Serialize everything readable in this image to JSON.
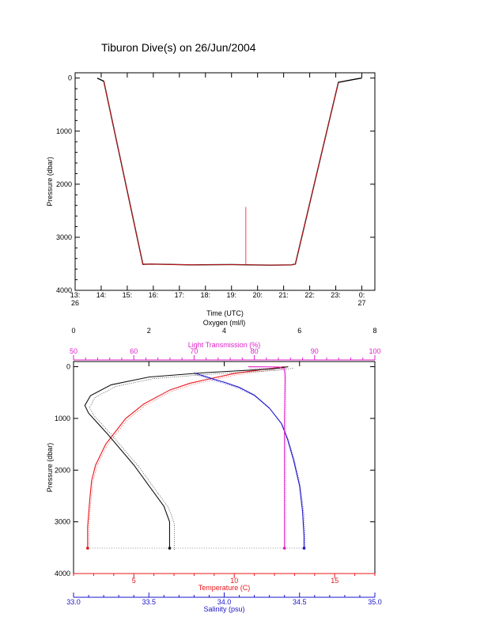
{
  "title": "Tiburon Dive(s) on 26/Jun/2004",
  "colors": {
    "axis": "#000000",
    "temperature": "#e8161c",
    "salinity": "#1a14c8",
    "oxygen": "#111111",
    "transmission": "#e020c8",
    "time_trace_a": "#000000",
    "time_trace_b": "#e8161c"
  },
  "chart_data": [
    {
      "type": "line",
      "name": "time-pressure",
      "xlabel": "Time (UTC)",
      "ylabel": "Pressure (dbar)",
      "xlim": [
        13.0,
        24.5
      ],
      "ylim": [
        4000,
        -100
      ],
      "x_ticks": [
        {
          "value": 13.0,
          "label": "13:",
          "sub": "26"
        },
        {
          "value": 14.0,
          "label": "14:",
          "sub": ""
        },
        {
          "value": 15.0,
          "label": "15:",
          "sub": ""
        },
        {
          "value": 16.0,
          "label": "16:",
          "sub": ""
        },
        {
          "value": 17.0,
          "label": "17:",
          "sub": ""
        },
        {
          "value": 18.0,
          "label": "18:",
          "sub": ""
        },
        {
          "value": 19.0,
          "label": "19:",
          "sub": ""
        },
        {
          "value": 20.0,
          "label": "20:",
          "sub": ""
        },
        {
          "value": 21.0,
          "label": "21:",
          "sub": ""
        },
        {
          "value": 22.0,
          "label": "22:",
          "sub": ""
        },
        {
          "value": 23.0,
          "label": "23:",
          "sub": ""
        },
        {
          "value": 24.0,
          "label": "0:",
          "sub": "27"
        }
      ],
      "y_ticks": [
        0,
        1000,
        2000,
        3000,
        4000
      ],
      "series": [
        {
          "color": "#000000",
          "x": [
            13.85,
            14.1,
            15.6,
            15.9,
            17.5,
            19.0,
            20.5,
            21.3,
            21.45,
            23.1,
            23.75,
            24.0
          ],
          "y": [
            0,
            60,
            3510,
            3505,
            3520,
            3515,
            3525,
            3520,
            3505,
            80,
            20,
            0
          ]
        },
        {
          "color": "#e8161c",
          "x": [
            14.1,
            15.6,
            15.9,
            17.5,
            19.0,
            20.5,
            21.3,
            21.45,
            23.1
          ],
          "y": [
            60,
            3510,
            3505,
            3520,
            3515,
            3525,
            3520,
            3505,
            80
          ]
        }
      ],
      "spike": {
        "color": "#e8161c",
        "x": 19.55,
        "y_top": 2430,
        "y_bottom": 3520
      }
    },
    {
      "type": "line",
      "name": "profiles",
      "ylabel": "Pressure (dbar)",
      "ylim": [
        4000,
        -100
      ],
      "y_ticks": [
        0,
        1000,
        2000,
        3000,
        4000
      ],
      "axes": {
        "oxygen": {
          "label": "Oxygen (ml/l)",
          "range": [
            0,
            8
          ],
          "ticks": [
            0,
            2,
            4,
            6,
            8
          ],
          "position": "top"
        },
        "transmission": {
          "label": "Light Transmission (%)",
          "range": [
            50,
            100
          ],
          "ticks": [
            50,
            60,
            70,
            80,
            90,
            100
          ],
          "position": "top"
        },
        "temperature": {
          "label": "Temperature (C)",
          "range": [
            2,
            17
          ],
          "ticks": [
            5,
            10,
            15
          ],
          "position": "bottom"
        },
        "salinity": {
          "label": "Salinity (psu)",
          "range": [
            33.0,
            35.0
          ],
          "ticks": [
            33.0,
            33.5,
            34.0,
            34.5,
            35.0
          ],
          "tick_labels": [
            "33.0",
            "33.5",
            "34.0",
            "34.5",
            "35.0"
          ],
          "position": "bottom"
        }
      },
      "series": [
        {
          "axis": "temperature",
          "color": "#e8161c",
          "x": [
            12.5,
            11.5,
            10.0,
            8.6,
            7.8,
            6.8,
            5.5,
            4.6,
            4.1,
            3.6,
            3.1,
            2.9,
            2.8,
            2.7,
            2.7
          ],
          "y": [
            0,
            50,
            130,
            250,
            320,
            450,
            720,
            1000,
            1250,
            1500,
            1900,
            2200,
            2600,
            3100,
            3510
          ]
        },
        {
          "axis": "salinity",
          "color": "#1a14c8",
          "x": [
            33.8,
            33.95,
            34.0,
            34.1,
            34.2,
            34.3,
            34.38,
            34.42,
            34.46,
            34.5,
            34.52,
            34.53,
            34.53
          ],
          "y": [
            120,
            260,
            300,
            400,
            550,
            800,
            1100,
            1400,
            1800,
            2300,
            2800,
            3300,
            3510
          ]
        },
        {
          "axis": "oxygen",
          "color": "#111111",
          "x": [
            5.7,
            5.3,
            3.4,
            2.0,
            1.0,
            0.45,
            0.3,
            0.4,
            0.9,
            1.6,
            2.4,
            2.55,
            2.55
          ],
          "y": [
            0,
            40,
            120,
            200,
            350,
            560,
            750,
            900,
            1300,
            1900,
            2700,
            3000,
            3510
          ]
        },
        {
          "axis": "transmission",
          "color": "#e020c8",
          "x": [
            79.0,
            84.0,
            85.0,
            85.1,
            85.0,
            85.0,
            85.0,
            85.0
          ],
          "y": [
            0,
            5,
            40,
            200,
            1000,
            2000,
            3000,
            3510
          ]
        }
      ]
    }
  ]
}
